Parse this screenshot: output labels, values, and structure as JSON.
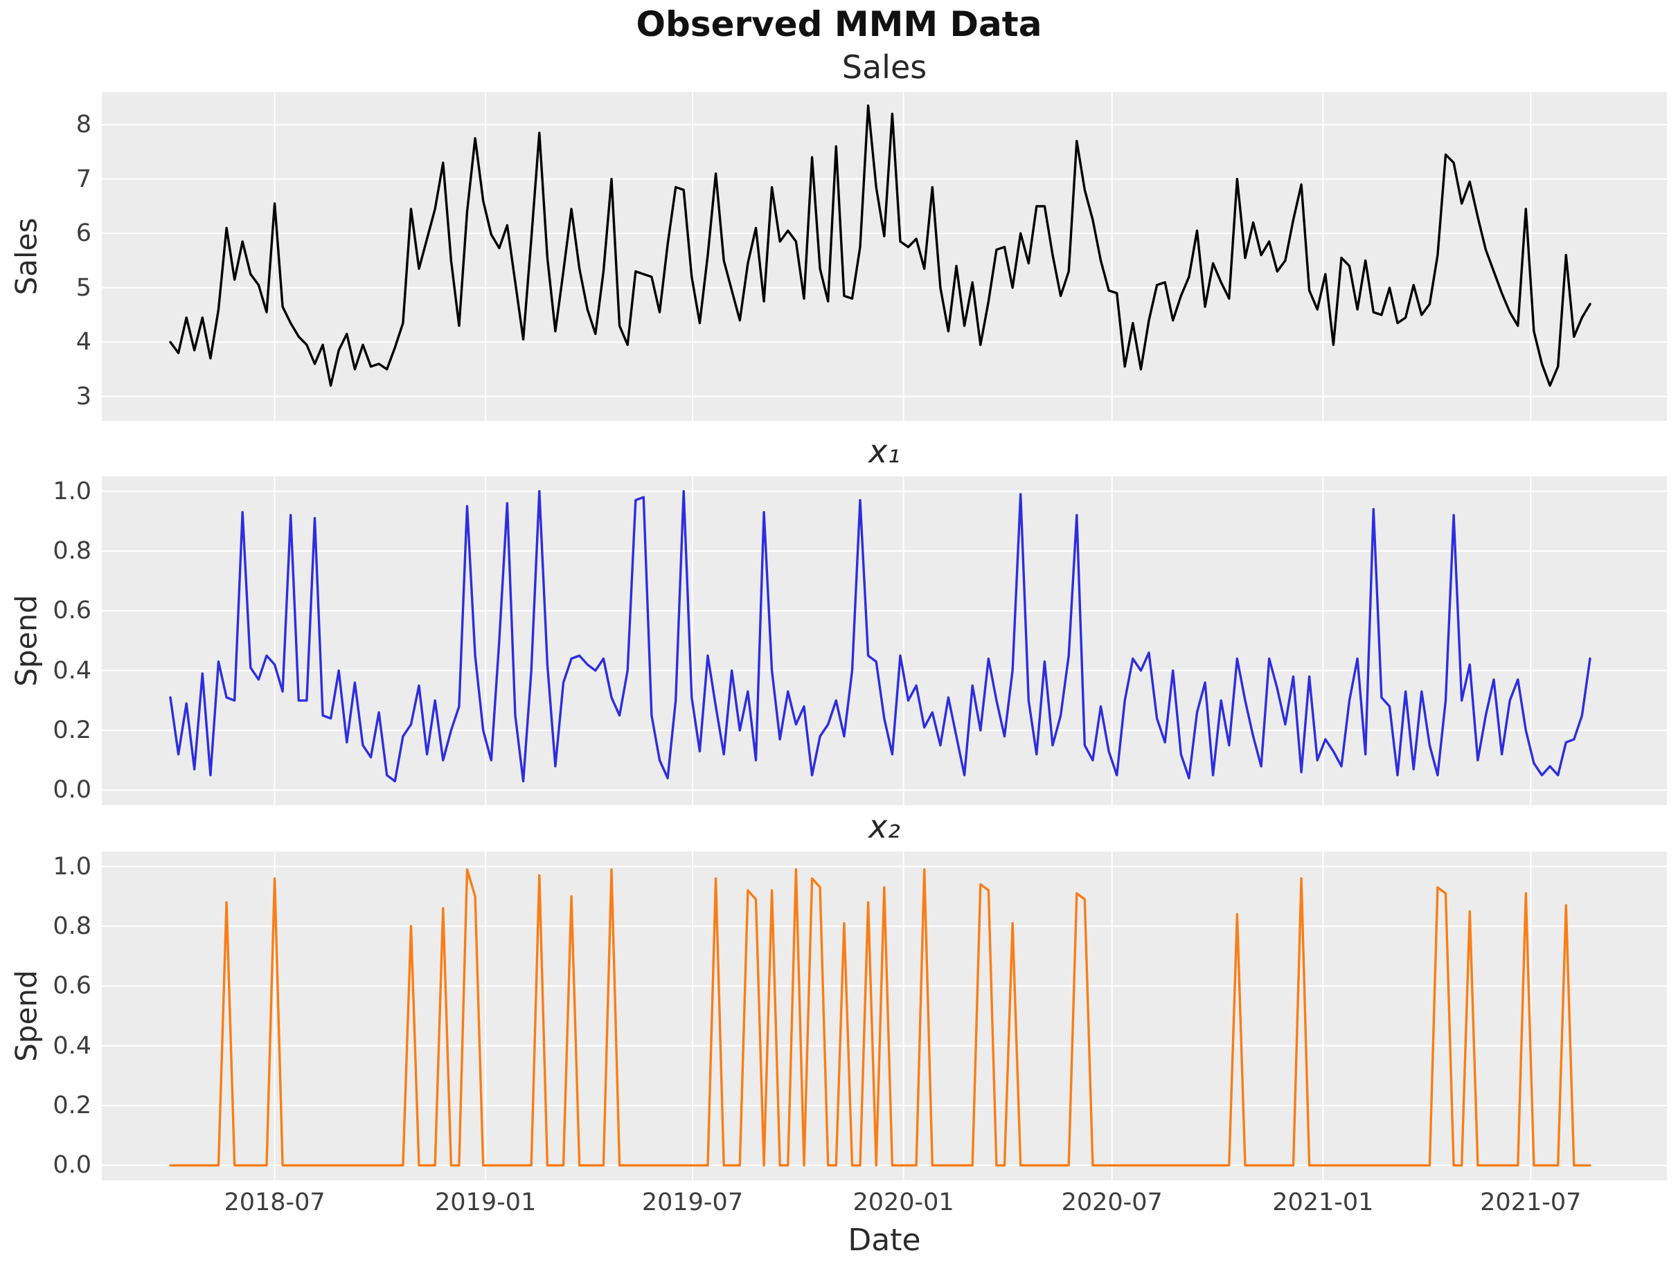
{
  "figure": {
    "suptitle": "Observed MMM Data",
    "xlabel": "Date",
    "background": "#ffffff",
    "panel_background": "#ececec",
    "gridline_color": "#ffffff",
    "tick_label_color": "#3d3d3d",
    "axis_label_color": "#2b2b2b"
  },
  "chart_data": [
    {
      "type": "line",
      "title": "Sales",
      "ylabel": "Sales",
      "line_color": "#000000",
      "ylim": [
        2.55,
        8.6
      ],
      "yticks": [
        3,
        4,
        5,
        6,
        7,
        8
      ],
      "ytick_labels": [
        "3",
        "4",
        "5",
        "6",
        "7",
        "8"
      ],
      "x_start_date": "2018-04-01",
      "x_freq": "weekly",
      "x_tick_labels": [
        "2018-07",
        "2019-01",
        "2019-07",
        "2020-01",
        "2020-07",
        "2021-01",
        "2021-07"
      ],
      "x_tick_week_index": [
        13,
        39.3,
        65.1,
        91.4,
        117.4,
        143.7,
        169.6
      ],
      "grid": true,
      "legend": false,
      "values": [
        4.0,
        3.8,
        4.45,
        3.85,
        4.45,
        3.7,
        4.6,
        6.1,
        5.15,
        5.85,
        5.25,
        5.05,
        4.55,
        6.55,
        4.65,
        4.35,
        4.1,
        3.95,
        3.6,
        3.95,
        3.2,
        3.85,
        4.15,
        3.5,
        3.95,
        3.55,
        3.6,
        3.5,
        3.9,
        4.35,
        6.45,
        5.35,
        5.9,
        6.45,
        7.3,
        5.5,
        4.3,
        6.4,
        7.75,
        6.6,
        5.98,
        5.73,
        6.15,
        5.1,
        4.05,
        5.9,
        7.85,
        5.55,
        4.2,
        5.3,
        6.45,
        5.35,
        4.6,
        4.15,
        5.3,
        7.0,
        4.3,
        3.95,
        5.3,
        5.25,
        5.2,
        4.55,
        5.8,
        6.85,
        6.8,
        5.2,
        4.35,
        5.6,
        7.1,
        5.5,
        4.95,
        4.4,
        5.45,
        6.1,
        4.75,
        6.85,
        5.85,
        6.05,
        5.85,
        4.8,
        7.4,
        5.35,
        4.75,
        7.6,
        4.85,
        4.8,
        5.75,
        8.35,
        6.85,
        5.95,
        8.2,
        5.85,
        5.75,
        5.9,
        5.35,
        6.85,
        5.0,
        4.2,
        5.4,
        4.3,
        5.1,
        3.95,
        4.75,
        5.7,
        5.75,
        5.0,
        6.0,
        5.45,
        6.5,
        6.5,
        5.6,
        4.85,
        5.3,
        7.7,
        6.8,
        6.25,
        5.5,
        4.95,
        4.9,
        3.55,
        4.35,
        3.5,
        4.4,
        5.05,
        5.1,
        4.4,
        4.85,
        5.2,
        6.05,
        4.65,
        5.45,
        5.1,
        4.8,
        7.0,
        5.55,
        6.2,
        5.6,
        5.85,
        5.3,
        5.5,
        6.25,
        6.9,
        4.95,
        4.6,
        5.25,
        3.95,
        5.55,
        5.4,
        4.6,
        5.5,
        4.55,
        4.5,
        5.0,
        4.35,
        4.45,
        5.05,
        4.5,
        4.7,
        5.6,
        7.45,
        7.3,
        6.55,
        6.95,
        6.3,
        5.7,
        5.3,
        4.9,
        4.55,
        4.3,
        6.45,
        4.2,
        3.6,
        3.2,
        3.55,
        5.6,
        4.1,
        4.45,
        4.7
      ]
    },
    {
      "type": "line",
      "title": "x₁",
      "ylabel": "Spend",
      "line_color": "#2d2de0",
      "ylim": [
        -0.05,
        1.05
      ],
      "yticks": [
        0.0,
        0.2,
        0.4,
        0.6,
        0.8,
        1.0
      ],
      "ytick_labels": [
        "0.0",
        "0.2",
        "0.4",
        "0.6",
        "0.8",
        "1.0"
      ],
      "grid": true,
      "legend": false,
      "values": [
        0.31,
        0.12,
        0.29,
        0.07,
        0.39,
        0.05,
        0.43,
        0.31,
        0.3,
        0.93,
        0.41,
        0.37,
        0.45,
        0.42,
        0.33,
        0.92,
        0.3,
        0.3,
        0.91,
        0.25,
        0.24,
        0.4,
        0.16,
        0.36,
        0.15,
        0.11,
        0.26,
        0.05,
        0.03,
        0.18,
        0.22,
        0.35,
        0.12,
        0.3,
        0.1,
        0.2,
        0.28,
        0.95,
        0.45,
        0.2,
        0.1,
        0.5,
        0.96,
        0.25,
        0.03,
        0.4,
        1.0,
        0.42,
        0.08,
        0.36,
        0.44,
        0.45,
        0.42,
        0.4,
        0.44,
        0.31,
        0.25,
        0.4,
        0.97,
        0.98,
        0.25,
        0.1,
        0.04,
        0.3,
        1.0,
        0.31,
        0.13,
        0.45,
        0.28,
        0.12,
        0.4,
        0.2,
        0.33,
        0.1,
        0.93,
        0.4,
        0.17,
        0.33,
        0.22,
        0.28,
        0.05,
        0.18,
        0.22,
        0.3,
        0.18,
        0.4,
        0.97,
        0.45,
        0.43,
        0.24,
        0.12,
        0.45,
        0.3,
        0.35,
        0.21,
        0.26,
        0.15,
        0.31,
        0.18,
        0.05,
        0.35,
        0.2,
        0.44,
        0.3,
        0.18,
        0.4,
        0.99,
        0.3,
        0.12,
        0.43,
        0.15,
        0.25,
        0.45,
        0.92,
        0.15,
        0.1,
        0.28,
        0.13,
        0.05,
        0.3,
        0.44,
        0.4,
        0.46,
        0.24,
        0.16,
        0.4,
        0.12,
        0.04,
        0.26,
        0.36,
        0.05,
        0.3,
        0.15,
        0.44,
        0.3,
        0.18,
        0.08,
        0.44,
        0.34,
        0.22,
        0.38,
        0.06,
        0.38,
        0.1,
        0.17,
        0.13,
        0.08,
        0.3,
        0.44,
        0.12,
        0.94,
        0.31,
        0.28,
        0.05,
        0.33,
        0.07,
        0.33,
        0.15,
        0.05,
        0.3,
        0.92,
        0.3,
        0.42,
        0.1,
        0.25,
        0.37,
        0.12,
        0.3,
        0.37,
        0.2,
        0.09,
        0.05,
        0.08,
        0.05,
        0.16,
        0.17,
        0.25,
        0.44
      ]
    },
    {
      "type": "line",
      "title": "x₂",
      "ylabel": "Spend",
      "line_color": "#f97d16",
      "ylim": [
        -0.05,
        1.05
      ],
      "yticks": [
        0.0,
        0.2,
        0.4,
        0.6,
        0.8,
        1.0
      ],
      "ytick_labels": [
        "0.0",
        "0.2",
        "0.4",
        "0.6",
        "0.8",
        "1.0"
      ],
      "grid": true,
      "legend": false,
      "values": [
        0,
        0,
        0,
        0,
        0,
        0,
        0,
        0.88,
        0,
        0,
        0,
        0,
        0,
        0.96,
        0,
        0,
        0,
        0,
        0,
        0,
        0,
        0,
        0,
        0,
        0,
        0,
        0,
        0,
        0,
        0,
        0.8,
        0,
        0,
        0,
        0.86,
        0,
        0,
        0.99,
        0.9,
        0,
        0,
        0,
        0,
        0,
        0,
        0,
        0.97,
        0,
        0,
        0,
        0.9,
        0,
        0,
        0,
        0,
        0.99,
        0,
        0,
        0,
        0,
        0,
        0,
        0,
        0,
        0,
        0,
        0,
        0,
        0.96,
        0,
        0,
        0,
        0.92,
        0.89,
        0,
        0.92,
        0,
        0,
        0.99,
        0,
        0.96,
        0.93,
        0,
        0,
        0.81,
        0,
        0,
        0.88,
        0,
        0.93,
        0,
        0,
        0,
        0,
        0.99,
        0,
        0,
        0,
        0,
        0,
        0,
        0.94,
        0.92,
        0,
        0,
        0.81,
        0,
        0,
        0,
        0,
        0,
        0,
        0,
        0.91,
        0.89,
        0,
        0,
        0,
        0,
        0,
        0,
        0,
        0,
        0,
        0,
        0,
        0,
        0,
        0,
        0,
        0,
        0,
        0,
        0.84,
        0,
        0,
        0,
        0,
        0,
        0,
        0,
        0.96,
        0,
        0,
        0,
        0,
        0,
        0,
        0,
        0,
        0,
        0,
        0,
        0,
        0,
        0,
        0,
        0,
        0.93,
        0.91,
        0,
        0,
        0.85,
        0,
        0,
        0,
        0,
        0,
        0,
        0.91,
        0,
        0,
        0,
        0,
        0.87,
        0,
        0,
        0
      ]
    }
  ]
}
